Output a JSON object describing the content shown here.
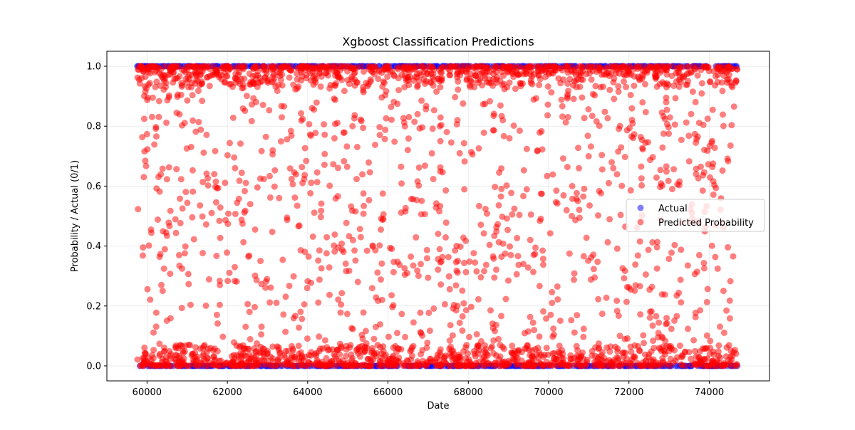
{
  "chart_data": {
    "type": "scatter",
    "title": "Xgboost Classification Predictions",
    "xlabel": "Date",
    "ylabel": "Probability / Actual (0/1)",
    "xlim": [
      59000,
      75500
    ],
    "ylim": [
      -0.05,
      1.05
    ],
    "x_ticks": [
      60000,
      62000,
      64000,
      66000,
      68000,
      70000,
      72000,
      74000
    ],
    "x_tick_labels": [
      "60000",
      "62000",
      "64000",
      "66000",
      "68000",
      "70000",
      "72000",
      "74000"
    ],
    "y_ticks": [
      0.0,
      0.2,
      0.4,
      0.6,
      0.8,
      1.0
    ],
    "y_tick_labels": [
      "0.0",
      "0.2",
      "0.4",
      "0.6",
      "0.8",
      "1.0"
    ],
    "x_range": [
      59760,
      74700
    ],
    "grid": true,
    "legend_position": "center-right",
    "series": [
      {
        "name": "Actual",
        "color": "#0000ff",
        "alpha": 0.5,
        "values": [
          0,
          1
        ]
      },
      {
        "name": "Predicted Probability",
        "color": "#ff0000",
        "alpha": 0.5
      }
    ]
  }
}
